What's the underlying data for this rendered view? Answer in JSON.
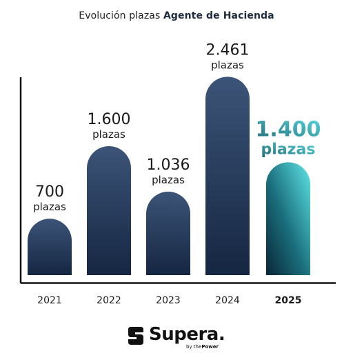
{
  "title": {
    "prefix": "Evolución plazas",
    "highlight": "Agente de Hacienda"
  },
  "chart_data": {
    "type": "bar",
    "categories": [
      "2021",
      "2022",
      "2023",
      "2024",
      "2025"
    ],
    "values": [
      700,
      1600,
      1036,
      2461,
      1400
    ],
    "value_labels": [
      "700",
      "1.600",
      "1.036",
      "2.461",
      "1.400"
    ],
    "unit_label": "plazas",
    "highlight_category": "2025",
    "ylim": [
      0,
      2900
    ],
    "grid": false,
    "bar_color": "#1e3352",
    "bar_color_light": "#3c5478",
    "highlight_color": "#4fd8dc",
    "highlight_dark": "#0a2636"
  },
  "brand": {
    "name": "Supera.",
    "tagline_prefix": "by the",
    "tagline_bold": "Power"
  }
}
